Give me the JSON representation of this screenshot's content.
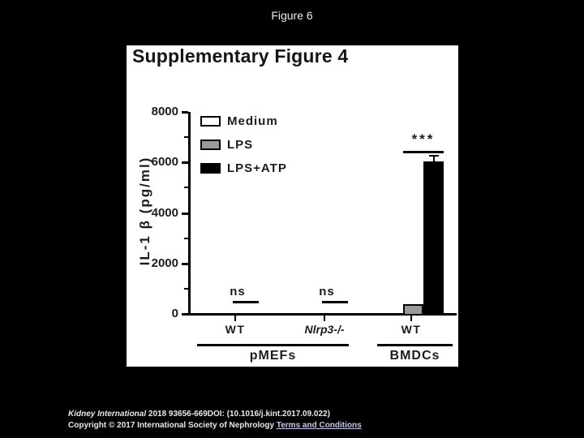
{
  "header": {
    "title": "Figure 6"
  },
  "colors": {
    "slide_background": "#000000",
    "figure_background": "#ffffff",
    "ink": "#000000",
    "lps_gray": "#999999",
    "link": "#c8c8ea"
  },
  "chart_data": {
    "type": "bar",
    "title": "Supplementary Figure 4",
    "ylabel": "IL-1 β  (pg/ml)",
    "xlabel": "",
    "ylim": [
      0,
      8000
    ],
    "ytick_step": 2000,
    "ytick_minor_step": 1000,
    "ytick_labels": [
      "0",
      "2000",
      "4000",
      "6000",
      "8000"
    ],
    "grid": false,
    "legend_position": "upper-left",
    "categories": [
      "WT",
      "Nlrp3-/-",
      "WT"
    ],
    "category_italic": [
      false,
      true,
      false
    ],
    "group_brackets": [
      {
        "label": "pMEFs",
        "groups": [
          0,
          1
        ]
      },
      {
        "label": "BMDCs",
        "groups": [
          2
        ]
      }
    ],
    "series": [
      {
        "name": "Medium",
        "color": "#ffffff",
        "values": [
          0,
          0,
          0
        ],
        "errors": [
          0,
          0,
          0
        ]
      },
      {
        "name": "LPS",
        "color": "#999999",
        "values": [
          0,
          0,
          400
        ],
        "errors": [
          0,
          0,
          0
        ]
      },
      {
        "name": "LPS+ATP",
        "color": "#000000",
        "values": [
          0,
          0,
          6050
        ],
        "errors": [
          0,
          0,
          200
        ]
      }
    ],
    "annotations": [
      {
        "group": 0,
        "label": "ns"
      },
      {
        "group": 1,
        "label": "ns"
      },
      {
        "group": 2,
        "label": "***"
      }
    ]
  },
  "footer": {
    "citation_journal": "Kidney International",
    "citation_rest": " 2018 93656-669DOI: (10.1016/j.kint.2017.09.022)",
    "copyright": "Copyright © 2017 International Society of Nephrology ",
    "link": "Terms and Conditions"
  }
}
